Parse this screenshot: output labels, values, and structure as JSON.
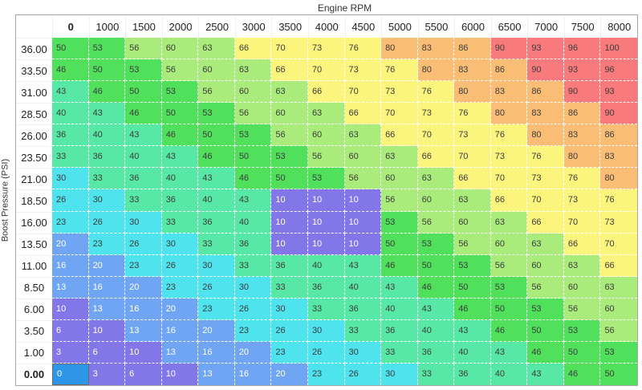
{
  "chart_data": {
    "type": "heatmap",
    "title": "Engine RPM",
    "x_label": "Engine RPM",
    "y_label": "Boost Pressure (PSI)",
    "columns": [
      "0",
      "1000",
      "1500",
      "2000",
      "2500",
      "3000",
      "3500",
      "4000",
      "4500",
      "5000",
      "5500",
      "6000",
      "6500",
      "7000",
      "7500",
      "8000"
    ],
    "rows": [
      {
        "label": "36.00",
        "values": [
          50,
          53,
          56,
          60,
          63,
          66,
          70,
          73,
          76,
          80,
          83,
          86,
          90,
          93,
          96,
          100
        ]
      },
      {
        "label": "33.50",
        "values": [
          46,
          50,
          53,
          56,
          60,
          63,
          66,
          70,
          73,
          76,
          80,
          83,
          86,
          90,
          93,
          96
        ]
      },
      {
        "label": "31.00",
        "values": [
          43,
          46,
          50,
          53,
          56,
          60,
          63,
          66,
          70,
          73,
          76,
          80,
          83,
          86,
          90,
          93
        ]
      },
      {
        "label": "28.50",
        "values": [
          40,
          43,
          46,
          50,
          53,
          56,
          60,
          63,
          66,
          70,
          73,
          76,
          80,
          83,
          86,
          90
        ]
      },
      {
        "label": "26.00",
        "values": [
          36,
          40,
          43,
          46,
          50,
          53,
          56,
          60,
          63,
          66,
          70,
          73,
          76,
          80,
          83,
          86
        ]
      },
      {
        "label": "23.50",
        "values": [
          33,
          36,
          40,
          43,
          46,
          50,
          53,
          56,
          60,
          63,
          66,
          70,
          73,
          76,
          80,
          83
        ]
      },
      {
        "label": "21.00",
        "values": [
          30,
          33,
          36,
          40,
          43,
          46,
          50,
          53,
          56,
          60,
          63,
          66,
          70,
          73,
          76,
          80
        ]
      },
      {
        "label": "18.50",
        "values": [
          26,
          30,
          33,
          36,
          40,
          43,
          10,
          10,
          10,
          56,
          60,
          63,
          66,
          70,
          73,
          76
        ]
      },
      {
        "label": "16.00",
        "values": [
          23,
          26,
          30,
          33,
          36,
          40,
          10,
          10,
          10,
          53,
          56,
          60,
          63,
          66,
          70,
          73
        ]
      },
      {
        "label": "13.50",
        "values": [
          20,
          23,
          26,
          30,
          33,
          36,
          10,
          10,
          10,
          50,
          53,
          56,
          60,
          63,
          66,
          70
        ]
      },
      {
        "label": "11.00",
        "values": [
          16,
          20,
          23,
          26,
          30,
          33,
          36,
          40,
          43,
          46,
          50,
          53,
          56,
          60,
          63,
          66
        ]
      },
      {
        "label": "8.50",
        "values": [
          13,
          16,
          20,
          23,
          26,
          30,
          33,
          36,
          40,
          43,
          46,
          50,
          53,
          56,
          60,
          63
        ]
      },
      {
        "label": "6.00",
        "values": [
          10,
          13,
          16,
          20,
          23,
          26,
          30,
          33,
          36,
          40,
          43,
          46,
          50,
          53,
          56,
          60
        ]
      },
      {
        "label": "3.50",
        "values": [
          6,
          10,
          13,
          16,
          20,
          23,
          26,
          30,
          33,
          36,
          40,
          43,
          46,
          50,
          53,
          56
        ]
      },
      {
        "label": "1.00",
        "values": [
          3,
          6,
          10,
          13,
          16,
          20,
          23,
          26,
          30,
          33,
          36,
          40,
          43,
          46,
          50,
          53
        ]
      },
      {
        "label": "0.00",
        "values": [
          0,
          3,
          6,
          10,
          13,
          16,
          20,
          23,
          26,
          30,
          33,
          36,
          40,
          43,
          46,
          50
        ]
      }
    ],
    "selected_cell": {
      "row_label": "0.00",
      "col_label": "0",
      "value": 0
    },
    "color_scale": [
      {
        "max": 10,
        "color": "#8276e9"
      },
      {
        "max": 20,
        "color": "#6fa5f3"
      },
      {
        "max": 30,
        "color": "#4fe3ee"
      },
      {
        "max": 43,
        "color": "#58e8a5"
      },
      {
        "max": 53,
        "color": "#50e05c"
      },
      {
        "max": 63,
        "color": "#a9ec7b"
      },
      {
        "max": 76,
        "color": "#fbf47d"
      },
      {
        "max": 86,
        "color": "#fabd76"
      },
      {
        "max": 100,
        "color": "#f87a7c"
      }
    ],
    "selected_color": "#2e96e8",
    "white_text_max": 20
  }
}
